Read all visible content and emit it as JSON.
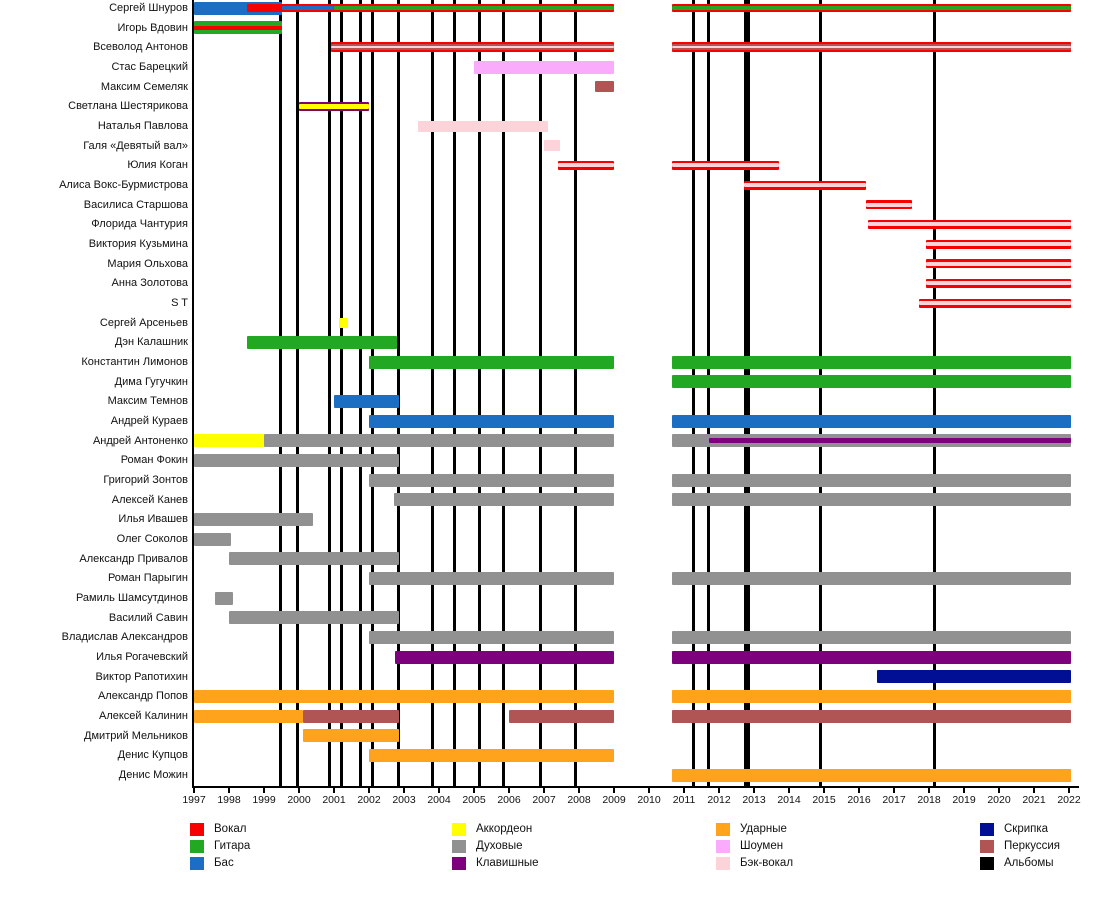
{
  "chart_data": {
    "type": "gantt-timeline",
    "title": "",
    "axis": {
      "year_start": 1997,
      "year_end": 2022,
      "tick_labels": [
        "1997",
        "1998",
        "1999",
        "2000",
        "2001",
        "2002",
        "2003",
        "2004",
        "2005",
        "2006",
        "2007",
        "2008",
        "2009",
        "2010",
        "2011",
        "2012",
        "2013",
        "2014",
        "2015",
        "2016",
        "2017",
        "2018",
        "2019",
        "2020",
        "2021",
        "2022"
      ],
      "grid": "off",
      "legend_position": "bottom"
    },
    "colors": {
      "vocal": "#f60000",
      "guitar": "#22a822",
      "bass": "#1b6ec2",
      "accordion": "#ffff00",
      "brass": "#919191",
      "keys": "#7d007d",
      "drums": "#ffa21c",
      "showman": "#fbabfb",
      "backvocal": "#fdd3da",
      "violin": "#000f93",
      "percussion": "#b05454",
      "albums": "#000000"
    },
    "legend_columns": [
      [
        {
          "label": "Вокал",
          "role": "vocal"
        },
        {
          "label": "Гитара",
          "role": "guitar"
        },
        {
          "label": "Бас",
          "role": "bass"
        }
      ],
      [
        {
          "label": "Аккордеон",
          "role": "accordion"
        },
        {
          "label": "Духовые",
          "role": "brass"
        },
        {
          "label": "Клавишные",
          "role": "keys"
        }
      ],
      [
        {
          "label": "Ударные",
          "role": "drums"
        },
        {
          "label": "Шоумен",
          "role": "showman"
        },
        {
          "label": "Бэк-вокал",
          "role": "backvocal"
        }
      ],
      [
        {
          "label": "Скрипка",
          "role": "violin"
        },
        {
          "label": "Перкуссия",
          "role": "percussion"
        },
        {
          "label": "Альбомы",
          "role": "albums"
        }
      ]
    ],
    "album_release_years": [
      {
        "year": 1999.48
      },
      {
        "year": 1999.95
      },
      {
        "year": 2000.86
      },
      {
        "year": 2001.2
      },
      {
        "year": 2001.77
      },
      {
        "year": 2002.1
      },
      {
        "year": 2002.83
      },
      {
        "year": 2003.8
      },
      {
        "year": 2004.43
      },
      {
        "year": 2005.17
      },
      {
        "year": 2005.83
      },
      {
        "year": 2006.9
      },
      {
        "year": 2007.9
      },
      {
        "year": 2011.26
      },
      {
        "year": 2011.7
      },
      {
        "year": 2012.8,
        "thick": true
      },
      {
        "year": 2014.9
      },
      {
        "year": 2018.17
      }
    ],
    "members": [
      {
        "name": "Сергей Шнуров",
        "segments": [
          {
            "role": "bass",
            "start": 1997,
            "end": 1999.5,
            "h": 13
          },
          {
            "role": "vocal",
            "start": 1998.5,
            "end": 2009,
            "h": 8
          },
          {
            "role": "bass",
            "start": 1999.5,
            "end": 2001,
            "h": 4
          },
          {
            "role": "guitar",
            "start": 2001,
            "end": 2009,
            "h": 4
          },
          {
            "role": "vocal",
            "start": 2010.65,
            "end": 2022.05,
            "h": 8
          },
          {
            "role": "guitar",
            "start": 2010.65,
            "end": 2022.05,
            "h": 4
          }
        ]
      },
      {
        "name": "Игорь Вдовин",
        "segments": [
          {
            "role": "guitar",
            "start": 1997,
            "end": 1999.5,
            "h": 13
          },
          {
            "role": "vocal",
            "start": 1997,
            "end": 1999.5,
            "h": 4
          }
        ]
      },
      {
        "name": "Всеволод Антонов",
        "segments": [
          {
            "role": "vocal",
            "start": 2000.9,
            "end": 2009,
            "h": 10
          },
          {
            "role": "percussion",
            "start": 2000.9,
            "end": 2009,
            "h": 6
          },
          {
            "role": "backvocal",
            "start": 2000.9,
            "end": 2009,
            "h": 2
          },
          {
            "role": "vocal",
            "start": 2010.65,
            "end": 2022.05,
            "h": 10
          },
          {
            "role": "percussion",
            "start": 2010.65,
            "end": 2022.05,
            "h": 6
          },
          {
            "role": "backvocal",
            "start": 2010.65,
            "end": 2022.05,
            "h": 2
          }
        ]
      },
      {
        "name": "Стас Барецкий",
        "segments": [
          {
            "role": "showman",
            "start": 2005,
            "end": 2009,
            "h": 13
          }
        ]
      },
      {
        "name": "Максим Семеляк",
        "segments": [
          {
            "role": "percussion",
            "start": 2008.45,
            "end": 2009,
            "h": 11
          }
        ]
      },
      {
        "name": "Светлана Шестярикова",
        "segments": [
          {
            "role": "keys",
            "start": 2000,
            "end": 2002,
            "h": 9
          },
          {
            "role": "accordion",
            "start": 2000,
            "end": 2002,
            "h": 5
          }
        ]
      },
      {
        "name": "Наталья Павлова",
        "segments": [
          {
            "role": "backvocal",
            "start": 2003.4,
            "end": 2007.1,
            "h": 11
          }
        ]
      },
      {
        "name": "Галя «Девятый вал»",
        "segments": [
          {
            "role": "backvocal",
            "start": 2007,
            "end": 2007.45,
            "h": 11
          }
        ]
      },
      {
        "name": "Юлия Коган",
        "segments": [
          {
            "role": "vocal",
            "start": 2007.4,
            "end": 2009,
            "h": 9
          },
          {
            "role": "backvocal",
            "start": 2007.4,
            "end": 2009,
            "h": 4
          },
          {
            "role": "vocal",
            "start": 2010.65,
            "end": 2013.7,
            "h": 9
          },
          {
            "role": "backvocal",
            "start": 2010.65,
            "end": 2013.7,
            "h": 4
          }
        ]
      },
      {
        "name": "Алиса Вокс-Бурмистрова",
        "segments": [
          {
            "role": "vocal",
            "start": 2012.7,
            "end": 2016.2,
            "h": 9
          },
          {
            "role": "backvocal",
            "start": 2012.7,
            "end": 2016.2,
            "h": 4
          }
        ]
      },
      {
        "name": "Василиса Старшова",
        "segments": [
          {
            "role": "vocal",
            "start": 2016.2,
            "end": 2017.5,
            "h": 9
          },
          {
            "role": "backvocal",
            "start": 2016.2,
            "end": 2017.5,
            "h": 4
          }
        ]
      },
      {
        "name": "Флорида Чантурия",
        "segments": [
          {
            "role": "vocal",
            "start": 2016.25,
            "end": 2022.05,
            "h": 9
          },
          {
            "role": "backvocal",
            "start": 2016.25,
            "end": 2022.05,
            "h": 4
          }
        ]
      },
      {
        "name": "Виктория Кузьмина",
        "segments": [
          {
            "role": "vocal",
            "start": 2017.9,
            "end": 2022.05,
            "h": 9
          },
          {
            "role": "backvocal",
            "start": 2017.9,
            "end": 2022.05,
            "h": 4
          }
        ]
      },
      {
        "name": "Мария Ольхова",
        "segments": [
          {
            "role": "vocal",
            "start": 2017.9,
            "end": 2022.05,
            "h": 9
          },
          {
            "role": "backvocal",
            "start": 2017.9,
            "end": 2022.05,
            "h": 4
          }
        ]
      },
      {
        "name": "Анна Золотова",
        "segments": [
          {
            "role": "vocal",
            "start": 2017.9,
            "end": 2022.05,
            "h": 9
          },
          {
            "role": "backvocal",
            "start": 2017.9,
            "end": 2022.05,
            "h": 4
          }
        ]
      },
      {
        "name": "S T",
        "segments": [
          {
            "role": "vocal",
            "start": 2017.7,
            "end": 2022.05,
            "h": 9
          },
          {
            "role": "backvocal",
            "start": 2017.7,
            "end": 2022.05,
            "h": 4
          }
        ]
      },
      {
        "name": "Сергей Арсеньев",
        "segments": [
          {
            "role": "accordion",
            "start": 2001.15,
            "end": 2001.4,
            "h": 10
          }
        ]
      },
      {
        "name": "Дэн Калашник",
        "segments": [
          {
            "role": "guitar",
            "start": 1998.5,
            "end": 2002.8,
            "h": 13
          }
        ]
      },
      {
        "name": "Константин Лимонов",
        "segments": [
          {
            "role": "guitar",
            "start": 2002,
            "end": 2009,
            "h": 13
          },
          {
            "role": "guitar",
            "start": 2010.65,
            "end": 2022.05,
            "h": 13
          }
        ]
      },
      {
        "name": "Дима Гугучкин",
        "segments": [
          {
            "role": "guitar",
            "start": 2010.65,
            "end": 2022.05,
            "h": 13
          }
        ]
      },
      {
        "name": "Максим Темнов",
        "segments": [
          {
            "role": "bass",
            "start": 2001,
            "end": 2002.85,
            "h": 13
          }
        ]
      },
      {
        "name": "Андрей Кураев",
        "segments": [
          {
            "role": "bass",
            "start": 2002,
            "end": 2009,
            "h": 13
          },
          {
            "role": "bass",
            "start": 2010.65,
            "end": 2022.05,
            "h": 13
          }
        ]
      },
      {
        "name": "Андрей Антоненко",
        "segments": [
          {
            "role": "accordion",
            "start": 1997,
            "end": 1999,
            "h": 13
          },
          {
            "role": "brass",
            "start": 1999,
            "end": 2009,
            "h": 13
          },
          {
            "role": "brass",
            "start": 2010.65,
            "end": 2022.05,
            "h": 13
          },
          {
            "role": "keys",
            "start": 2011.7,
            "end": 2022.05,
            "h": 5
          }
        ]
      },
      {
        "name": "Роман Фокин",
        "segments": [
          {
            "role": "brass",
            "start": 1997,
            "end": 2002.85,
            "h": 13
          }
        ]
      },
      {
        "name": "Григорий Зонтов",
        "segments": [
          {
            "role": "brass",
            "start": 2002,
            "end": 2009,
            "h": 13
          },
          {
            "role": "brass",
            "start": 2010.65,
            "end": 2022.05,
            "h": 13
          }
        ]
      },
      {
        "name": "Алексей Канев",
        "segments": [
          {
            "role": "brass",
            "start": 2002.7,
            "end": 2009,
            "h": 13
          },
          {
            "role": "brass",
            "start": 2010.65,
            "end": 2022.05,
            "h": 13
          }
        ]
      },
      {
        "name": "Илья Ивашев",
        "segments": [
          {
            "role": "brass",
            "start": 1997,
            "end": 2000.4,
            "h": 13
          }
        ]
      },
      {
        "name": "Олег Соколов",
        "segments": [
          {
            "role": "brass",
            "start": 1997,
            "end": 1998.05,
            "h": 13
          }
        ]
      },
      {
        "name": "Александр Привалов",
        "segments": [
          {
            "role": "brass",
            "start": 1998,
            "end": 2002.85,
            "h": 13
          }
        ]
      },
      {
        "name": "Роман Парыгин",
        "segments": [
          {
            "role": "brass",
            "start": 2002,
            "end": 2009,
            "h": 13
          },
          {
            "role": "brass",
            "start": 2010.65,
            "end": 2022.05,
            "h": 13
          }
        ]
      },
      {
        "name": "Рамиль Шамсутдинов",
        "segments": [
          {
            "role": "brass",
            "start": 1997.6,
            "end": 1998.1,
            "h": 13
          }
        ]
      },
      {
        "name": "Василий Савин",
        "segments": [
          {
            "role": "brass",
            "start": 1998,
            "end": 2002.85,
            "h": 13
          }
        ]
      },
      {
        "name": "Владислав Александров",
        "segments": [
          {
            "role": "brass",
            "start": 2002,
            "end": 2009,
            "h": 13
          },
          {
            "role": "brass",
            "start": 2010.65,
            "end": 2022.05,
            "h": 13
          }
        ]
      },
      {
        "name": "Илья Рогачевский",
        "segments": [
          {
            "role": "keys",
            "start": 2002.75,
            "end": 2009,
            "h": 13
          },
          {
            "role": "keys",
            "start": 2010.65,
            "end": 2022.05,
            "h": 13
          }
        ]
      },
      {
        "name": "Виктор Рапотихин",
        "segments": [
          {
            "role": "violin",
            "start": 2016.5,
            "end": 2022.05,
            "h": 13
          }
        ]
      },
      {
        "name": "Александр Попов",
        "segments": [
          {
            "role": "drums",
            "start": 1997,
            "end": 2009,
            "h": 13
          },
          {
            "role": "drums",
            "start": 2010.65,
            "end": 2022.05,
            "h": 13
          }
        ]
      },
      {
        "name": "Алексей Калинин",
        "segments": [
          {
            "role": "drums",
            "start": 1997,
            "end": 2000.1,
            "h": 13
          },
          {
            "role": "percussion",
            "start": 2000.1,
            "end": 2002.85,
            "h": 13
          },
          {
            "role": "percussion",
            "start": 2006,
            "end": 2009,
            "h": 13
          },
          {
            "role": "percussion",
            "start": 2010.65,
            "end": 2022.05,
            "h": 13
          }
        ]
      },
      {
        "name": "Дмитрий Мельников",
        "segments": [
          {
            "role": "drums",
            "start": 2000.1,
            "end": 2002.85,
            "h": 13
          }
        ]
      },
      {
        "name": "Денис Купцов",
        "segments": [
          {
            "role": "drums",
            "start": 2002,
            "end": 2009,
            "h": 13
          }
        ]
      },
      {
        "name": "Денис Можин",
        "segments": [
          {
            "role": "drums",
            "start": 2010.65,
            "end": 2022.05,
            "h": 13
          }
        ]
      }
    ]
  }
}
